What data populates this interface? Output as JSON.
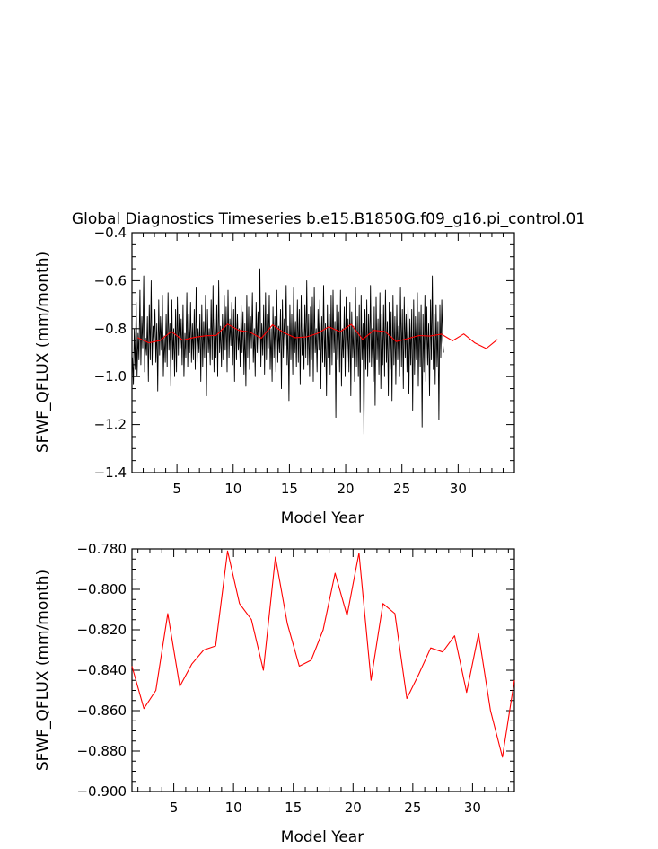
{
  "chart_data": [
    {
      "type": "line",
      "title": "Global Diagnostics Timeseries b.e15.B1850G.f09_g16.pi_control.01",
      "xlabel": "Model Year",
      "ylabel": "SFWF_QFLUX (mm/month)",
      "xlim": [
        1,
        35
      ],
      "ylim": [
        -1.4,
        -0.4
      ],
      "xticks": [
        5,
        10,
        15,
        20,
        25,
        30
      ],
      "xtick_labels": [
        "5",
        "10",
        "15",
        "20",
        "25",
        "30"
      ],
      "yticks": [
        -1.4,
        -1.2,
        -1.0,
        -0.8,
        -0.6,
        -0.4
      ],
      "ytick_labels": [
        "−1.4",
        "−1.2",
        "−1.0",
        "−0.8",
        "−0.6",
        "−0.4"
      ],
      "series": [
        {
          "color": "#000000",
          "monthly": true,
          "values": [
            -0.92,
            -1.03,
            -0.8,
            -0.97,
            -0.69,
            -1.0,
            -0.82,
            -0.93,
            -0.64,
            -0.95,
            -0.75,
            -0.88,
            -0.58,
            -0.98,
            -0.84,
            -0.91,
            -0.75,
            -1.02,
            -0.7,
            -0.93,
            -0.6,
            -0.95,
            -0.79,
            -0.86,
            -0.72,
            -0.94,
            -0.78,
            -1.06,
            -0.68,
            -0.91,
            -0.75,
            -0.89,
            -0.66,
            -1.0,
            -0.83,
            -0.94,
            -0.74,
            -0.96,
            -0.65,
            -0.89,
            -0.78,
            -1.04,
            -0.68,
            -0.93,
            -0.8,
            -1.0,
            -0.72,
            -0.98,
            -0.67,
            -0.91,
            -0.74,
            -0.88,
            -0.76,
            -0.95,
            -0.7,
            -1.0,
            -0.82,
            -0.92,
            -0.65,
            -0.96,
            -0.74,
            -0.9,
            -0.69,
            -0.94,
            -0.78,
            -0.93,
            -0.72,
            -0.97,
            -0.63,
            -0.94,
            -0.8,
            -0.9,
            -0.74,
            -1.02,
            -0.7,
            -0.96,
            -0.77,
            -0.92,
            -0.66,
            -1.08,
            -0.72,
            -0.9,
            -0.8,
            -0.95,
            -0.68,
            -0.93,
            -0.62,
            -0.98,
            -0.76,
            -0.92,
            -0.7,
            -1.0,
            -0.6,
            -0.9,
            -0.79,
            -0.96,
            -0.74,
            -0.93,
            -0.66,
            -0.89,
            -0.71,
            -0.98,
            -0.64,
            -0.92,
            -0.76,
            -0.87,
            -0.69,
            -0.95,
            -0.72,
            -1.02,
            -0.67,
            -0.93,
            -0.74,
            -0.89,
            -0.8,
            -0.96,
            -0.7,
            -0.9,
            -0.73,
            -0.99,
            -0.78,
            -1.04,
            -0.66,
            -0.92,
            -0.71,
            -0.97,
            -0.75,
            -0.88,
            -0.65,
            -0.94,
            -0.8,
            -1.0,
            -0.69,
            -0.9,
            -0.73,
            -0.93,
            -0.55,
            -0.96,
            -0.78,
            -0.91,
            -0.7,
            -0.99,
            -0.65,
            -0.93,
            -0.74,
            -0.88,
            -0.66,
            -0.97,
            -0.8,
            -1.02,
            -0.71,
            -0.92,
            -0.75,
            -0.98,
            -0.64,
            -0.94,
            -0.79,
            -0.9,
            -0.72,
            -1.05,
            -0.68,
            -0.92,
            -0.76,
            -0.87,
            -0.62,
            -0.95,
            -0.79,
            -1.1,
            -0.7,
            -0.93,
            -0.74,
            -0.99,
            -0.63,
            -0.9,
            -0.77,
            -0.96,
            -0.68,
            -0.94,
            -0.72,
            -1.03,
            -0.66,
            -0.91,
            -0.78,
            -0.97,
            -0.7,
            -0.92,
            -0.6,
            -0.95,
            -0.74,
            -1.0,
            -0.71,
            -0.93,
            -0.67,
            -1.02,
            -0.63,
            -0.9,
            -0.8,
            -0.98,
            -0.72,
            -0.89,
            -0.68,
            -1.05,
            -0.75,
            -0.94,
            -0.62,
            -0.96,
            -0.78,
            -1.08,
            -0.7,
            -0.92,
            -0.74,
            -0.99,
            -0.66,
            -0.95,
            -0.64,
            -0.9,
            -0.77,
            -1.17,
            -0.7,
            -0.93,
            -0.73,
            -0.98,
            -0.64,
            -1.04,
            -0.8,
            -0.92,
            -0.71,
            -1.0,
            -0.67,
            -0.94,
            -0.76,
            -0.98,
            -0.69,
            -1.08,
            -0.73,
            -0.92,
            -0.79,
            -1.02,
            -0.63,
            -0.96,
            -0.75,
            -1.0,
            -0.7,
            -1.15,
            -0.66,
            -0.93,
            -0.78,
            -1.24,
            -0.72,
            -0.97,
            -0.68,
            -1.0,
            -0.74,
            -0.94,
            -0.62,
            -0.96,
            -0.8,
            -1.02,
            -0.71,
            -1.12,
            -0.67,
            -0.93,
            -0.76,
            -0.99,
            -0.65,
            -1.05,
            -0.74,
            -0.95,
            -0.7,
            -1.0,
            -0.64,
            -0.94,
            -0.77,
            -1.08,
            -0.69,
            -0.97,
            -0.73,
            -1.1,
            -0.66,
            -0.95,
            -0.75,
            -1.03,
            -0.7,
            -0.93,
            -0.79,
            -1.0,
            -0.63,
            -0.96,
            -0.72,
            -1.05,
            -0.67,
            -0.92,
            -0.74,
            -0.98,
            -0.69,
            -1.07,
            -0.76,
            -0.95,
            -0.72,
            -1.14,
            -0.68,
            -0.99,
            -0.75,
            -0.93,
            -0.65,
            -1.04,
            -0.73,
            -0.96,
            -0.7,
            -1.21,
            -0.74,
            -0.98,
            -0.66,
            -1.02,
            -0.71,
            -0.95,
            -0.78,
            -1.08,
            -0.68,
            -0.93,
            -0.58,
            -0.97,
            -0.74,
            -1.03,
            -0.7,
            -0.96,
            -0.77,
            -1.18,
            -0.7,
            -0.92,
            -0.68,
            -0.85,
            -0.9
          ]
        },
        {
          "color": "#ff0000",
          "annual": true,
          "values": [
            -0.838,
            -0.859,
            -0.85,
            -0.812,
            -0.848,
            -0.837,
            -0.83,
            -0.828,
            -0.781,
            -0.807,
            -0.815,
            -0.84,
            -0.784,
            -0.817,
            -0.838,
            -0.835,
            -0.82,
            -0.792,
            -0.813,
            -0.782,
            -0.845,
            -0.807,
            -0.812,
            -0.854,
            -0.842,
            -0.829,
            -0.831,
            -0.823,
            -0.851,
            -0.822,
            -0.86,
            -0.883,
            -0.845
          ]
        }
      ]
    },
    {
      "type": "line",
      "title": "",
      "xlabel": "Model Year",
      "ylabel": "SFWF_QFLUX (mm/month)",
      "xlim": [
        1.5,
        33.5
      ],
      "ylim": [
        -0.9,
        -0.78
      ],
      "xticks": [
        5,
        10,
        15,
        20,
        25,
        30
      ],
      "xtick_labels": [
        "5",
        "10",
        "15",
        "20",
        "25",
        "30"
      ],
      "yticks": [
        -0.9,
        -0.88,
        -0.86,
        -0.84,
        -0.82,
        -0.8,
        -0.78
      ],
      "ytick_labels": [
        "−0.900",
        "−0.880",
        "−0.860",
        "−0.840",
        "−0.820",
        "−0.800",
        "−0.780"
      ],
      "series": [
        {
          "color": "#ff0000",
          "x": [
            1.5,
            2.5,
            3.5,
            4.5,
            5.5,
            6.5,
            7.5,
            8.5,
            9.5,
            10.5,
            11.5,
            12.5,
            13.5,
            14.5,
            15.5,
            16.5,
            17.5,
            18.5,
            19.5,
            20.5,
            21.5,
            22.5,
            23.5,
            24.5,
            25.5,
            26.5,
            27.5,
            28.5,
            29.5,
            30.5,
            31.5,
            32.5,
            33.5
          ],
          "values": [
            -0.838,
            -0.859,
            -0.85,
            -0.812,
            -0.848,
            -0.837,
            -0.83,
            -0.828,
            -0.781,
            -0.807,
            -0.815,
            -0.84,
            -0.784,
            -0.817,
            -0.838,
            -0.835,
            -0.82,
            -0.792,
            -0.813,
            -0.782,
            -0.845,
            -0.807,
            -0.812,
            -0.854,
            -0.842,
            -0.829,
            -0.831,
            -0.823,
            -0.851,
            -0.822,
            -0.86,
            -0.883,
            -0.845
          ]
        }
      ]
    }
  ]
}
